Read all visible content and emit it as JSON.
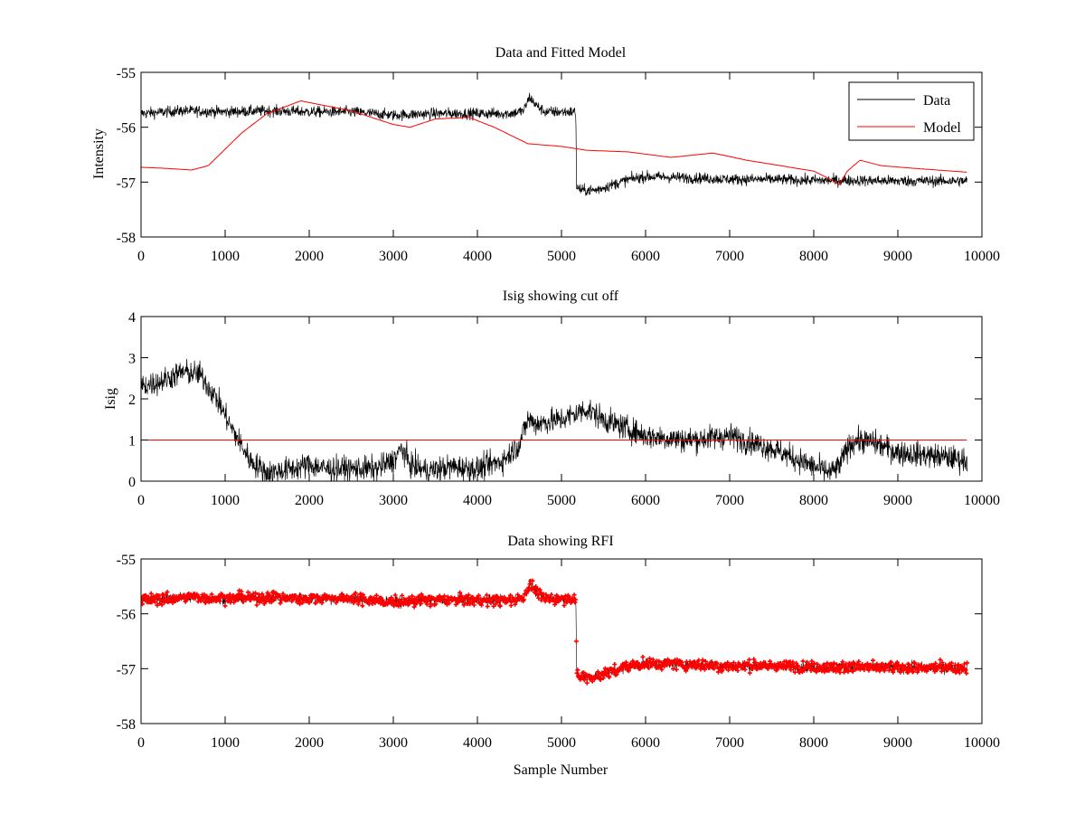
{
  "chart_data": [
    {
      "type": "line",
      "title": "Data and Fitted Model",
      "xlabel": "",
      "ylabel": "Intensity",
      "xlim": [
        0,
        10000
      ],
      "ylim": [
        -58,
        -55
      ],
      "xticks": [
        0,
        1000,
        2000,
        3000,
        4000,
        5000,
        6000,
        7000,
        8000,
        9000,
        10000
      ],
      "yticks": [
        -58,
        -57,
        -56,
        -55
      ],
      "grid": false,
      "legend": "top-right",
      "series": [
        {
          "name": "Data",
          "color": "#000000",
          "noise": 0.1,
          "x": [
            0,
            500,
            1000,
            1500,
            2000,
            2500,
            3000,
            3500,
            4000,
            4400,
            4550,
            4620,
            4700,
            4800,
            5000,
            5170,
            5180,
            5250,
            5400,
            5600,
            5800,
            6000,
            6500,
            7000,
            7500,
            8000,
            8500,
            9000,
            9500,
            9830
          ],
          "y": [
            -55.75,
            -55.7,
            -55.72,
            -55.7,
            -55.72,
            -55.72,
            -55.78,
            -55.75,
            -55.75,
            -55.75,
            -55.7,
            -55.45,
            -55.6,
            -55.72,
            -55.72,
            -55.72,
            -57.1,
            -57.15,
            -57.15,
            -57.05,
            -56.95,
            -56.9,
            -56.92,
            -56.95,
            -56.95,
            -56.97,
            -56.97,
            -56.98,
            -56.98,
            -56.98
          ]
        },
        {
          "name": "Model",
          "color": "#ff0000",
          "noise": 0,
          "x": [
            0,
            300,
            600,
            800,
            1000,
            1200,
            1500,
            1900,
            2100,
            2500,
            2800,
            3000,
            3200,
            3500,
            3900,
            4200,
            4600,
            5000,
            5300,
            5800,
            6300,
            6800,
            7200,
            7600,
            8000,
            8200,
            8300,
            8400,
            8550,
            8800,
            9200,
            9830
          ],
          "y": [
            -56.73,
            -56.75,
            -56.78,
            -56.7,
            -56.4,
            -56.1,
            -55.75,
            -55.52,
            -55.58,
            -55.7,
            -55.85,
            -55.95,
            -56.0,
            -55.85,
            -55.82,
            -56.0,
            -56.3,
            -56.35,
            -56.42,
            -56.45,
            -56.55,
            -56.47,
            -56.6,
            -56.7,
            -56.8,
            -56.95,
            -57.05,
            -56.8,
            -56.6,
            -56.7,
            -56.75,
            -56.82
          ]
        }
      ]
    },
    {
      "type": "line",
      "title": "Isig showing cut off",
      "xlabel": "",
      "ylabel": "Isig",
      "xlim": [
        0,
        10000
      ],
      "ylim": [
        0,
        4
      ],
      "xticks": [
        0,
        1000,
        2000,
        3000,
        4000,
        5000,
        6000,
        7000,
        8000,
        9000,
        10000
      ],
      "yticks": [
        0,
        1,
        2,
        3,
        4
      ],
      "grid": false,
      "series": [
        {
          "color": "#000000",
          "noise": 0.3,
          "x": [
            0,
            200,
            500,
            700,
            900,
            1100,
            1300,
            1500,
            1800,
            2000,
            2200,
            2500,
            2800,
            3000,
            3100,
            3200,
            3400,
            3700,
            4000,
            4300,
            4500,
            4600,
            4700,
            5000,
            5300,
            5500,
            6000,
            6500,
            7000,
            7500,
            8000,
            8200,
            8300,
            8400,
            8500,
            8700,
            9000,
            9500,
            9830
          ],
          "y": [
            2.3,
            2.4,
            2.65,
            2.6,
            2.0,
            1.2,
            0.5,
            0.2,
            0.3,
            0.4,
            0.3,
            0.3,
            0.3,
            0.5,
            0.8,
            0.4,
            0.25,
            0.35,
            0.3,
            0.5,
            0.9,
            1.5,
            1.4,
            1.5,
            1.75,
            1.5,
            1.1,
            1.0,
            1.1,
            0.8,
            0.35,
            0.2,
            0.35,
            0.8,
            1.0,
            0.95,
            0.7,
            0.6,
            0.5
          ]
        },
        {
          "color": "#ff0000",
          "noise": 0,
          "x": [
            0,
            9830
          ],
          "y": [
            1,
            1
          ]
        }
      ]
    },
    {
      "type": "scatter",
      "title": "Data showing RFI",
      "xlabel": "Sample Number",
      "ylabel": "",
      "xlim": [
        0,
        10000
      ],
      "ylim": [
        -58,
        -55
      ],
      "xticks": [
        0,
        1000,
        2000,
        3000,
        4000,
        5000,
        6000,
        7000,
        8000,
        9000,
        10000
      ],
      "yticks": [
        -58,
        -57,
        -56,
        -55
      ],
      "grid": false,
      "series": [
        {
          "color": "#ff0000",
          "line_color": "#000000",
          "noise": 0.1,
          "x": [
            0,
            500,
            1000,
            1500,
            2000,
            2500,
            3000,
            3500,
            4000,
            4400,
            4550,
            4620,
            4700,
            4800,
            5000,
            5170,
            5180,
            5250,
            5400,
            5600,
            5800,
            6000,
            6500,
            7000,
            7500,
            8000,
            8500,
            9000,
            9500,
            9830
          ],
          "y": [
            -55.75,
            -55.7,
            -55.72,
            -55.7,
            -55.72,
            -55.72,
            -55.78,
            -55.75,
            -55.75,
            -55.75,
            -55.7,
            -55.45,
            -55.6,
            -55.72,
            -55.72,
            -55.72,
            -57.1,
            -57.15,
            -57.15,
            -57.05,
            -56.95,
            -56.9,
            -56.92,
            -56.95,
            -56.95,
            -56.97,
            -56.97,
            -56.98,
            -56.98,
            -56.98
          ]
        }
      ]
    }
  ]
}
